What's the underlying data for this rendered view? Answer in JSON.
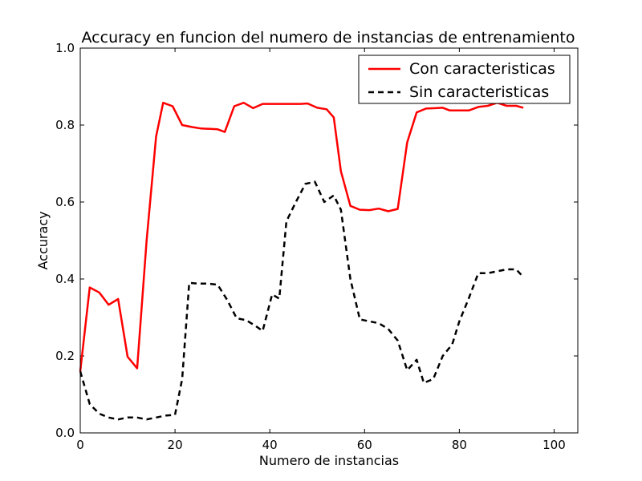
{
  "chart_data": {
    "type": "line",
    "title": "Accuracy en funcion del numero de instancias de entrenamiento",
    "xlabel": "Numero de instancias",
    "ylabel": "Accuracy",
    "xlim": [
      0,
      105
    ],
    "ylim": [
      0.0,
      1.0
    ],
    "xticks": [
      0,
      20,
      40,
      60,
      80,
      100
    ],
    "yticks": [
      0.0,
      0.2,
      0.4,
      0.6,
      0.8,
      1.0
    ],
    "xtick_labels": [
      "0",
      "20",
      "40",
      "60",
      "80",
      "100"
    ],
    "ytick_labels": [
      "0.0",
      "0.2",
      "0.4",
      "0.6",
      "0.8",
      "1.0"
    ],
    "grid": false,
    "legend_position": "top-right",
    "series": [
      {
        "name": "Con caracteristicas",
        "color": "#ff0000",
        "style": "solid",
        "points": [
          [
            0,
            0.16
          ],
          [
            2,
            0.378
          ],
          [
            4,
            0.365
          ],
          [
            6,
            0.333
          ],
          [
            8,
            0.348
          ],
          [
            10,
            0.198
          ],
          [
            12,
            0.168
          ],
          [
            14,
            0.5
          ],
          [
            16,
            0.77
          ],
          [
            17.5,
            0.858
          ],
          [
            19.5,
            0.849
          ],
          [
            21.5,
            0.8
          ],
          [
            23.5,
            0.795
          ],
          [
            25.5,
            0.791
          ],
          [
            27.5,
            0.79
          ],
          [
            29,
            0.789
          ],
          [
            30.5,
            0.782
          ],
          [
            32.5,
            0.849
          ],
          [
            34.5,
            0.858
          ],
          [
            36.5,
            0.844
          ],
          [
            38.5,
            0.855
          ],
          [
            40.5,
            0.855
          ],
          [
            42.5,
            0.855
          ],
          [
            44.5,
            0.855
          ],
          [
            46.5,
            0.855
          ],
          [
            48,
            0.856
          ],
          [
            50,
            0.845
          ],
          [
            52,
            0.841
          ],
          [
            53.5,
            0.82
          ],
          [
            55,
            0.68
          ],
          [
            57,
            0.59
          ],
          [
            59,
            0.58
          ],
          [
            61,
            0.579
          ],
          [
            63,
            0.583
          ],
          [
            65,
            0.576
          ],
          [
            67,
            0.582
          ],
          [
            69,
            0.755
          ],
          [
            71,
            0.833
          ],
          [
            73,
            0.843
          ],
          [
            75,
            0.844
          ],
          [
            76.5,
            0.845
          ],
          [
            78,
            0.838
          ],
          [
            80,
            0.838
          ],
          [
            82,
            0.838
          ],
          [
            84,
            0.847
          ],
          [
            86,
            0.85
          ],
          [
            88,
            0.858
          ],
          [
            90,
            0.85
          ],
          [
            92,
            0.85
          ],
          [
            93.5,
            0.845
          ]
        ]
      },
      {
        "name": "Sin caracteristicas",
        "color": "#000000",
        "style": "dashed",
        "points": [
          [
            0,
            0.16
          ],
          [
            2,
            0.075
          ],
          [
            4,
            0.05
          ],
          [
            6,
            0.04
          ],
          [
            8,
            0.035
          ],
          [
            10,
            0.04
          ],
          [
            12,
            0.04
          ],
          [
            14,
            0.035
          ],
          [
            16,
            0.04
          ],
          [
            18,
            0.045
          ],
          [
            20,
            0.047
          ],
          [
            21.5,
            0.14
          ],
          [
            23,
            0.39
          ],
          [
            25,
            0.388
          ],
          [
            27,
            0.388
          ],
          [
            29,
            0.385
          ],
          [
            31,
            0.346
          ],
          [
            33,
            0.298
          ],
          [
            35,
            0.293
          ],
          [
            37,
            0.278
          ],
          [
            38.5,
            0.265
          ],
          [
            40.5,
            0.36
          ],
          [
            42,
            0.349
          ],
          [
            43.5,
            0.55
          ],
          [
            45.5,
            0.6
          ],
          [
            47.5,
            0.647
          ],
          [
            49.5,
            0.653
          ],
          [
            51.5,
            0.6
          ],
          [
            53.5,
            0.617
          ],
          [
            55,
            0.58
          ],
          [
            57,
            0.4
          ],
          [
            59,
            0.295
          ],
          [
            61,
            0.29
          ],
          [
            63,
            0.285
          ],
          [
            65,
            0.27
          ],
          [
            67,
            0.24
          ],
          [
            69,
            0.163
          ],
          [
            71,
            0.19
          ],
          [
            72.5,
            0.13
          ],
          [
            74.5,
            0.14
          ],
          [
            76.5,
            0.2
          ],
          [
            78.5,
            0.23
          ],
          [
            80,
            0.29
          ],
          [
            82,
            0.35
          ],
          [
            84,
            0.415
          ],
          [
            86,
            0.415
          ],
          [
            88,
            0.42
          ],
          [
            90,
            0.425
          ],
          [
            92,
            0.425
          ],
          [
            93.5,
            0.405
          ]
        ]
      }
    ]
  }
}
